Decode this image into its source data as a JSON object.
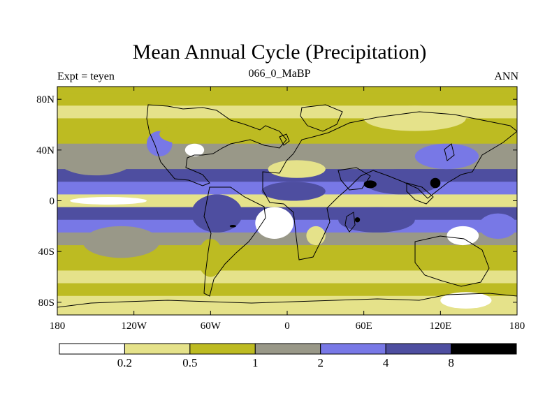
{
  "chart_data": {
    "type": "heatmap",
    "title": "Mean Annual Cycle (Precipitation)",
    "subtitle_left": "Expt = teyen",
    "subtitle_center": "066_0_MaBP",
    "subtitle_right": "ANN",
    "x_ticks": [
      "180",
      "120W",
      "60W",
      "0",
      "60E",
      "120E",
      "180"
    ],
    "y_ticks": [
      "80N",
      "40N",
      "0",
      "40S",
      "80S"
    ],
    "xlim": [
      -180,
      180
    ],
    "ylim": [
      -90,
      90
    ],
    "colorbar": {
      "colors": [
        "#ffffff",
        "#e5e28a",
        "#bdbb22",
        "#999888",
        "#7878e6",
        "#4e4ea0",
        "#000000"
      ],
      "labels": [
        "0.2",
        "0.5",
        "1",
        "2",
        "4",
        "8"
      ]
    },
    "bands": [
      {
        "lat": 90,
        "level": 2
      },
      {
        "lat": 80,
        "level": 2
      },
      {
        "lat": 70,
        "level": 1
      },
      {
        "lat": 60,
        "level": 2
      },
      {
        "lat": 50,
        "level": 2
      },
      {
        "lat": 40,
        "level": 3
      },
      {
        "lat": 30,
        "level": 3
      },
      {
        "lat": 20,
        "level": 5
      },
      {
        "lat": 10,
        "level": 4
      },
      {
        "lat": 0,
        "level": 1
      },
      {
        "lat": -10,
        "level": 5
      },
      {
        "lat": -20,
        "level": 4
      },
      {
        "lat": -30,
        "level": 3
      },
      {
        "lat": -40,
        "level": 2
      },
      {
        "lat": -50,
        "level": 2
      },
      {
        "lat": -60,
        "level": 1
      },
      {
        "lat": -70,
        "level": 2
      },
      {
        "lat": -80,
        "level": 1
      },
      {
        "lat": -90,
        "level": 1
      }
    ],
    "regions": [
      {
        "name": "subtropical-pacific-north",
        "level": 3,
        "lon": [
          -180,
          -120
        ],
        "lat": [
          20,
          45
        ]
      },
      {
        "name": "subtropical-pacific-south",
        "level": 3,
        "lon": [
          -160,
          -100
        ],
        "lat": [
          -45,
          -20
        ]
      },
      {
        "name": "equatorial-pacific-dry",
        "level": 0,
        "lon": [
          -170,
          -110
        ],
        "lat": [
          -3,
          3
        ]
      },
      {
        "name": "north-america-east",
        "level": 4,
        "lon": [
          -110,
          -90
        ],
        "lat": [
          35,
          55
        ]
      },
      {
        "name": "north-america-dry",
        "level": 0,
        "lon": [
          -80,
          -65
        ],
        "lat": [
          35,
          45
        ]
      },
      {
        "name": "north-america-interior",
        "level": 2,
        "lon": [
          -100,
          -60
        ],
        "lat": [
          45,
          60
        ]
      },
      {
        "name": "amazon-wet",
        "level": 5,
        "lon": [
          -75,
          -35
        ],
        "lat": [
          -25,
          5
        ]
      },
      {
        "name": "amazon-core",
        "level": 6,
        "lon": [
          -45,
          -40
        ],
        "lat": [
          -21,
          -19
        ]
      },
      {
        "name": "south-america-south",
        "level": 2,
        "lon": [
          -70,
          -50
        ],
        "lat": [
          -60,
          -30
        ]
      },
      {
        "name": "atlantic-dry-south",
        "level": 0,
        "lon": [
          -25,
          5
        ],
        "lat": [
          -30,
          -5
        ]
      },
      {
        "name": "africa-central-wet",
        "level": 5,
        "lon": [
          -20,
          30
        ],
        "lat": [
          0,
          15
        ]
      },
      {
        "name": "africa-south",
        "level": 1,
        "lon": [
          15,
          30
        ],
        "lat": [
          -35,
          -20
        ]
      },
      {
        "name": "sahara-dry",
        "level": 1,
        "lon": [
          -15,
          30
        ],
        "lat": [
          18,
          32
        ]
      },
      {
        "name": "indian-ocean-wet",
        "level": 5,
        "lon": [
          40,
          100
        ],
        "lat": [
          -25,
          -5
        ]
      },
      {
        "name": "indian-ocean-core",
        "level": 6,
        "lon": [
          53,
          57
        ],
        "lat": [
          -17,
          -13
        ]
      },
      {
        "name": "south-asia-wet",
        "level": 5,
        "lon": [
          60,
          120
        ],
        "lat": [
          5,
          25
        ]
      },
      {
        "name": "south-asia-core-1",
        "level": 6,
        "lon": [
          60,
          70
        ],
        "lat": [
          10,
          16
        ]
      },
      {
        "name": "south-asia-core-2",
        "level": 6,
        "lon": [
          112,
          120
        ],
        "lat": [
          10,
          18
        ]
      },
      {
        "name": "east-asia",
        "level": 4,
        "lon": [
          100,
          150
        ],
        "lat": [
          25,
          45
        ]
      },
      {
        "name": "siberia",
        "level": 1,
        "lon": [
          60,
          140
        ],
        "lat": [
          55,
          75
        ]
      },
      {
        "name": "australia-dry",
        "level": 0,
        "lon": [
          125,
          150
        ],
        "lat": [
          -35,
          -20
        ]
      },
      {
        "name": "south-pacific-wet",
        "level": 4,
        "lon": [
          150,
          180
        ],
        "lat": [
          -30,
          -10
        ]
      },
      {
        "name": "antarctica-east",
        "level": 0,
        "lon": [
          120,
          160
        ],
        "lat": [
          -85,
          -72
        ]
      }
    ]
  }
}
